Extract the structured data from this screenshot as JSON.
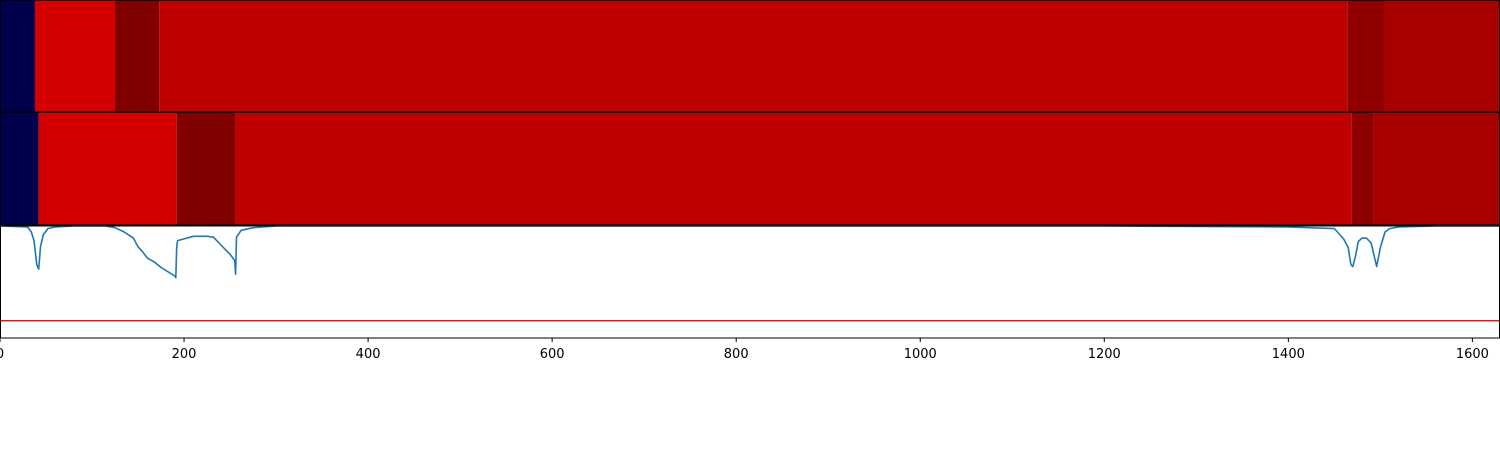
{
  "chart_data": [
    {
      "type": "heatmap",
      "title": "",
      "segments": [
        {
          "start": 0,
          "end": 38,
          "color": "#00004c"
        },
        {
          "start": 38,
          "end": 125,
          "color": "#d40000"
        },
        {
          "start": 125,
          "end": 173,
          "color": "#800000"
        },
        {
          "start": 173,
          "end": 1464,
          "color": "#be0000"
        },
        {
          "start": 1464,
          "end": 1505,
          "color": "#910000"
        },
        {
          "start": 1505,
          "end": 1630,
          "color": "#a90000"
        }
      ]
    },
    {
      "type": "heatmap",
      "title": "",
      "segments": [
        {
          "start": 0,
          "end": 42,
          "color": "#00004c"
        },
        {
          "start": 42,
          "end": 192,
          "color": "#d40000"
        },
        {
          "start": 192,
          "end": 256,
          "color": "#800000"
        },
        {
          "start": 256,
          "end": 1469,
          "color": "#be0000"
        },
        {
          "start": 1469,
          "end": 1493,
          "color": "#910000"
        },
        {
          "start": 1493,
          "end": 1630,
          "color": "#a90000"
        }
      ]
    },
    {
      "type": "line",
      "title": "",
      "xlabel": "",
      "ylabel": "",
      "xlim": [
        0,
        1630
      ],
      "ylim": [
        -0.3,
        1.0
      ],
      "x_ticks": [
        "0",
        "200",
        "400",
        "600",
        "800",
        "1000",
        "1200",
        "1400",
        "1600"
      ],
      "threshold": {
        "value": -0.1,
        "color": "#e31a1c"
      },
      "series": [
        {
          "color": "#1f77b4",
          "x": [
            0,
            30,
            34,
            37,
            40,
            42,
            44,
            47,
            52,
            60,
            80,
            115,
            125,
            135,
            145,
            150,
            155,
            160,
            168,
            175,
            190,
            191,
            192,
            193,
            200,
            210,
            225,
            232,
            240,
            250,
            255,
            256,
            257,
            262,
            275,
            300,
            400,
            600,
            800,
            1000,
            1200,
            1400,
            1450,
            1460,
            1465,
            1468,
            1470,
            1473,
            1476,
            1480,
            1485,
            1490,
            1494,
            1496,
            1500,
            1505,
            1510,
            1520,
            1560,
            1630
          ],
          "y": [
            1.0,
            0.99,
            0.93,
            0.83,
            0.55,
            0.5,
            0.76,
            0.9,
            0.97,
            0.99,
            1.0,
            1.0,
            0.98,
            0.93,
            0.86,
            0.76,
            0.7,
            0.63,
            0.58,
            0.52,
            0.42,
            0.4,
            0.76,
            0.83,
            0.85,
            0.88,
            0.88,
            0.87,
            0.78,
            0.67,
            0.6,
            0.44,
            0.87,
            0.95,
            0.98,
            1.0,
            1.0,
            1.0,
            1.0,
            1.0,
            1.0,
            0.99,
            0.97,
            0.85,
            0.75,
            0.55,
            0.53,
            0.65,
            0.82,
            0.86,
            0.86,
            0.8,
            0.62,
            0.53,
            0.75,
            0.93,
            0.97,
            0.99,
            1.0,
            1.0
          ]
        }
      ]
    }
  ]
}
